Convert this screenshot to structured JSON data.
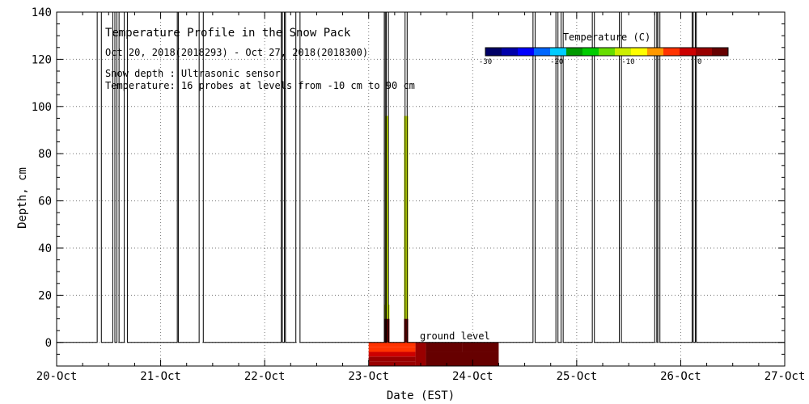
{
  "chart_data": {
    "type": "heatmap",
    "title": "Temperature Profile in the Snow Pack",
    "subtitle": "Oct 20, 2018(2018293) - Oct 27, 2018(2018300)",
    "notes": [
      "Snow depth : Ultrasonic sensor",
      "Temperature: 16 probes at levels from -10 cm to 90 cm"
    ],
    "xlabel": "Date (EST)",
    "ylabel": "Depth, cm",
    "xlim": [
      0,
      7
    ],
    "ylim": [
      -10,
      140
    ],
    "x_ticks": [
      {
        "x": 0,
        "label": "20-Oct"
      },
      {
        "x": 1,
        "label": "21-Oct"
      },
      {
        "x": 2,
        "label": "22-Oct"
      },
      {
        "x": 3,
        "label": "23-Oct"
      },
      {
        "x": 4,
        "label": "24-Oct"
      },
      {
        "x": 5,
        "label": "25-Oct"
      },
      {
        "x": 6,
        "label": "26-Oct"
      },
      {
        "x": 7,
        "label": "27-Oct"
      }
    ],
    "y_ticks": [
      0,
      20,
      40,
      60,
      80,
      100,
      120,
      140
    ],
    "grid": true,
    "annotation": {
      "text": "ground level",
      "x": 3.5,
      "y": 0
    },
    "colorbar": {
      "title": "Temperature (C)",
      "range": [
        -30,
        4
      ],
      "ticks": [
        {
          "value": -30,
          "label": "-30"
        },
        {
          "value": -20,
          "label": "-20"
        },
        {
          "value": -10,
          "label": "-10"
        },
        {
          "value": 0,
          "label": "0"
        }
      ],
      "colors": [
        "#000066",
        "#0000aa",
        "#0000ff",
        "#0066ff",
        "#00ccff",
        "#009900",
        "#00cc00",
        "#66dd00",
        "#ccee00",
        "#ffff00",
        "#ff9900",
        "#ff3300",
        "#cc0000",
        "#990000",
        "#660000"
      ]
    },
    "snow_depth_spikes": [
      {
        "start": 0.39,
        "end": 0.43,
        "peak": 140
      },
      {
        "start": 0.54,
        "end": 0.56,
        "peak": 140
      },
      {
        "start": 0.58,
        "end": 0.6,
        "peak": 140
      },
      {
        "start": 0.65,
        "end": 0.68,
        "peak": 140
      },
      {
        "start": 1.16,
        "end": 1.17,
        "peak": 140
      },
      {
        "start": 1.37,
        "end": 1.41,
        "peak": 140
      },
      {
        "start": 2.16,
        "end": 2.17,
        "peak": 140
      },
      {
        "start": 2.19,
        "end": 2.2,
        "peak": 140
      },
      {
        "start": 2.3,
        "end": 2.34,
        "peak": 140
      },
      {
        "start": 3.15,
        "end": 3.16,
        "peak": 140
      },
      {
        "start": 3.17,
        "end": 3.19,
        "peak": 140
      },
      {
        "start": 3.35,
        "end": 3.37,
        "peak": 140
      },
      {
        "start": 4.58,
        "end": 4.6,
        "peak": 140
      },
      {
        "start": 4.8,
        "end": 4.82,
        "peak": 140
      },
      {
        "start": 4.85,
        "end": 4.87,
        "peak": 140
      },
      {
        "start": 5.15,
        "end": 5.17,
        "peak": 140
      },
      {
        "start": 5.41,
        "end": 5.43,
        "peak": 140
      },
      {
        "start": 5.75,
        "end": 5.77,
        "peak": 140
      },
      {
        "start": 5.78,
        "end": 5.8,
        "peak": 140
      },
      {
        "start": 6.11,
        "end": 6.12,
        "peak": 140
      },
      {
        "start": 6.14,
        "end": 6.15,
        "peak": 140
      }
    ],
    "temperature_cells": [
      {
        "x0": 3.0,
        "x1": 3.45,
        "y0": -10,
        "y1": -8,
        "temp": 1
      },
      {
        "x0": 3.0,
        "x1": 3.45,
        "y0": -8,
        "y1": -6,
        "temp": 0
      },
      {
        "x0": 3.0,
        "x1": 3.45,
        "y0": -6,
        "y1": -4,
        "temp": -1
      },
      {
        "x0": 3.0,
        "x1": 3.45,
        "y0": -4,
        "y1": -2,
        "temp": -3
      },
      {
        "x0": 3.0,
        "x1": 3.45,
        "y0": -2,
        "y1": 0,
        "temp": -5
      },
      {
        "x0": 3.45,
        "x1": 3.55,
        "y0": -10,
        "y1": 0,
        "temp": 0.5
      },
      {
        "x0": 3.55,
        "x1": 4.25,
        "y0": -10,
        "y1": -4,
        "temp": 2
      },
      {
        "x0": 3.55,
        "x1": 3.9,
        "y0": -4,
        "y1": 0,
        "temp": 3
      },
      {
        "x0": 3.9,
        "x1": 4.25,
        "y0": -4,
        "y1": 0,
        "temp": 2
      },
      {
        "x0": 3.15,
        "x1": 3.2,
        "y0": 0,
        "y1": 10,
        "temp": 2
      },
      {
        "x0": 3.15,
        "x1": 3.2,
        "y0": 10,
        "y1": 16,
        "temp": -11
      },
      {
        "x0": 3.16,
        "x1": 3.19,
        "y0": 16,
        "y1": 96,
        "temp": -11
      },
      {
        "x0": 3.34,
        "x1": 3.38,
        "y0": 0,
        "y1": 10,
        "temp": 2
      },
      {
        "x0": 3.34,
        "x1": 3.38,
        "y0": 10,
        "y1": 96,
        "temp": -11
      }
    ]
  }
}
